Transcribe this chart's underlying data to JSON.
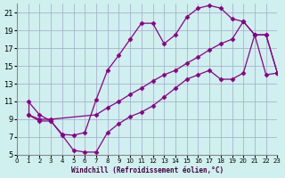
{
  "xlabel": "Windchill (Refroidissement éolien,°C)",
  "bg_color": "#d0efef",
  "grid_color": "#a0a8c8",
  "line_color": "#880088",
  "xlim": [
    0,
    23
  ],
  "ylim": [
    5,
    22
  ],
  "xticks": [
    0,
    1,
    2,
    3,
    4,
    5,
    6,
    7,
    8,
    9,
    10,
    11,
    12,
    13,
    14,
    15,
    16,
    17,
    18,
    19,
    20,
    21,
    22,
    23
  ],
  "yticks": [
    5,
    7,
    9,
    11,
    13,
    15,
    17,
    19,
    21
  ],
  "line1_x": [
    1,
    2,
    3,
    4,
    5,
    6,
    7,
    8,
    9,
    10,
    11,
    12,
    13,
    14,
    15,
    16,
    17,
    18,
    19,
    20,
    21,
    22,
    23
  ],
  "line1_y": [
    11,
    9.5,
    8.8,
    7.3,
    7.2,
    7.5,
    11.2,
    14.5,
    16.2,
    18.0,
    19.8,
    19.8,
    17.5,
    18.5,
    20.5,
    21.5,
    21.8,
    21.5,
    20.3,
    20.0,
    18.5,
    14.0,
    14.2
  ],
  "line2_x": [
    1,
    2,
    3,
    7,
    8,
    9,
    10,
    11,
    12,
    13,
    14,
    15,
    16,
    17,
    18,
    19,
    20,
    21,
    22,
    23
  ],
  "line2_y": [
    9.5,
    9.0,
    9.0,
    9.5,
    10.3,
    11.0,
    11.8,
    12.5,
    13.3,
    14.0,
    14.5,
    15.3,
    16.0,
    16.8,
    17.5,
    18.0,
    20.0,
    18.5,
    18.5,
    14.2
  ],
  "line3_x": [
    1,
    2,
    3,
    4,
    5,
    6,
    7,
    8,
    9,
    10,
    11,
    12,
    13,
    14,
    15,
    16,
    17,
    18,
    19,
    20,
    21,
    22,
    23
  ],
  "line3_y": [
    9.5,
    8.8,
    8.8,
    7.2,
    5.5,
    5.3,
    5.3,
    7.5,
    8.5,
    9.3,
    9.8,
    10.5,
    11.5,
    12.5,
    13.5,
    14.0,
    14.5,
    13.5,
    13.5,
    14.2,
    18.5,
    18.5,
    14.2
  ]
}
